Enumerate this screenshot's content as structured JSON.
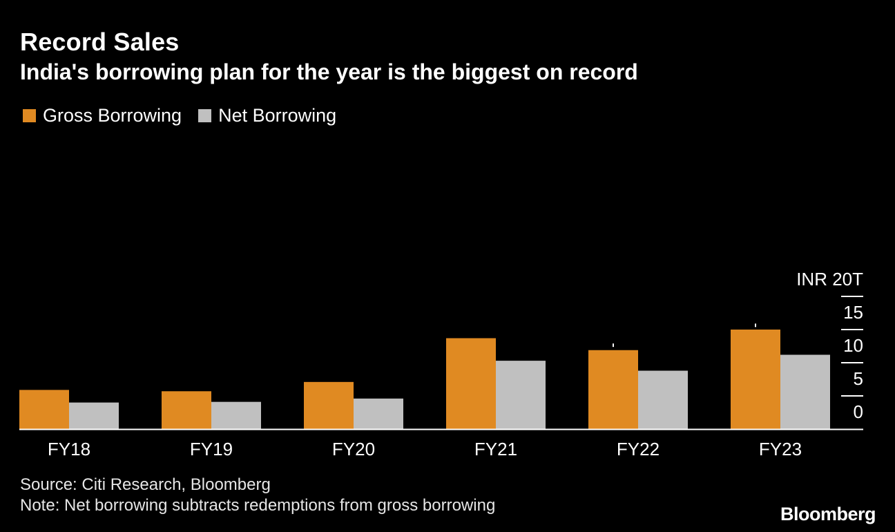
{
  "header": {
    "title": "Record Sales",
    "subtitle": "India's borrowing plan for the year is the biggest on record"
  },
  "legend": {
    "items": [
      {
        "label": "Gross Borrowing",
        "color": "#e08a22"
      },
      {
        "label": "Net Borrowing",
        "color": "#c0c0c0"
      }
    ]
  },
  "footer": {
    "source": "Source: Citi Research, Bloomberg",
    "note": "Note: Net borrowing subtracts redemptions from gross borrowing",
    "brand": "Bloomberg"
  },
  "chart_data": {
    "type": "bar",
    "title": "Record Sales",
    "subtitle": "India's borrowing plan for the year is the biggest on record",
    "categories": [
      "FY18",
      "FY19",
      "FY20",
      "FY21",
      "FY22",
      "FY23"
    ],
    "series": [
      {
        "name": "Gross Borrowing",
        "color": "#e08a22",
        "values": [
          5.9,
          5.7,
          7.1,
          13.7,
          11.9,
          15.0
        ]
      },
      {
        "name": "Net Borrowing",
        "color": "#c0c0c0",
        "values": [
          4.0,
          4.1,
          4.6,
          10.3,
          8.8,
          11.2
        ]
      }
    ],
    "markers": [
      {
        "category": "FY22",
        "value": 12.9
      },
      {
        "category": "FY23",
        "value": 15.9
      }
    ],
    "yticks": [
      0,
      5,
      10,
      15,
      20
    ],
    "ytick_labels": [
      "0",
      "5",
      "10",
      "15",
      "INR 20T"
    ],
    "ylim": [
      0,
      20
    ],
    "xlabel": "",
    "ylabel": "",
    "grid": false,
    "legend_position": "top-left",
    "axis_color": "#ffffff"
  }
}
